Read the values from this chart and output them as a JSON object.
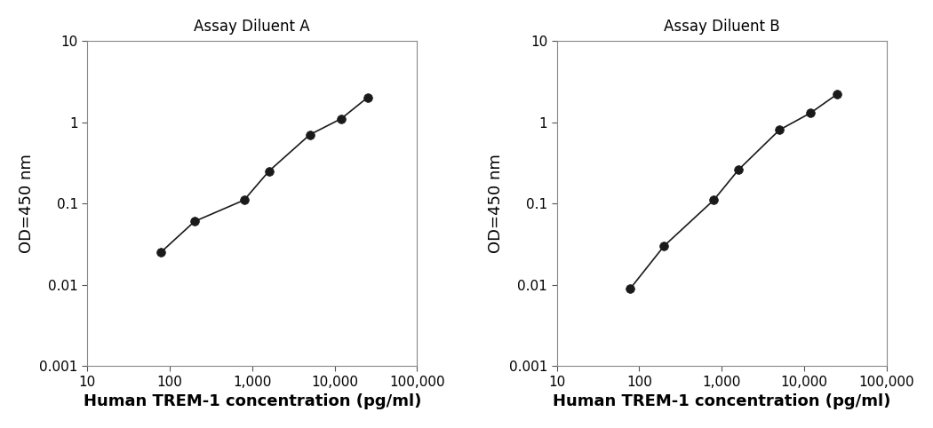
{
  "plot_A": {
    "title": "Assay Diluent A",
    "x": [
      78,
      200,
      800,
      1600,
      5000,
      12000,
      25000
    ],
    "y": [
      0.025,
      0.06,
      0.11,
      0.25,
      0.7,
      1.1,
      2.0
    ]
  },
  "plot_B": {
    "title": "Assay Diluent B",
    "x": [
      78,
      200,
      800,
      1600,
      5000,
      12000,
      25000
    ],
    "y": [
      0.009,
      0.03,
      0.11,
      0.26,
      0.8,
      1.3,
      2.2
    ]
  },
  "xlabel": "Human TREM-1 concentration (pg/ml)",
  "ylabel": "OD=450 nm",
  "xlim": [
    10,
    100000
  ],
  "ylim": [
    0.001,
    10
  ],
  "xticks": [
    10,
    100,
    1000,
    10000,
    100000
  ],
  "xtick_labels": [
    "10",
    "100",
    "1,000",
    "10,000",
    "100,000"
  ],
  "yticks": [
    0.001,
    0.01,
    0.1,
    1,
    10
  ],
  "ytick_labels": [
    "0.001",
    "0.01",
    "0.1",
    "1",
    "10"
  ],
  "line_color": "#1a1a1a",
  "marker_color": "#1a1a1a",
  "marker_size": 7,
  "line_width": 1.2,
  "title_fontsize": 12,
  "label_fontsize": 13,
  "tick_fontsize": 11,
  "background_color": "#ffffff",
  "spine_color": "#888888",
  "spine_linewidth": 0.8
}
